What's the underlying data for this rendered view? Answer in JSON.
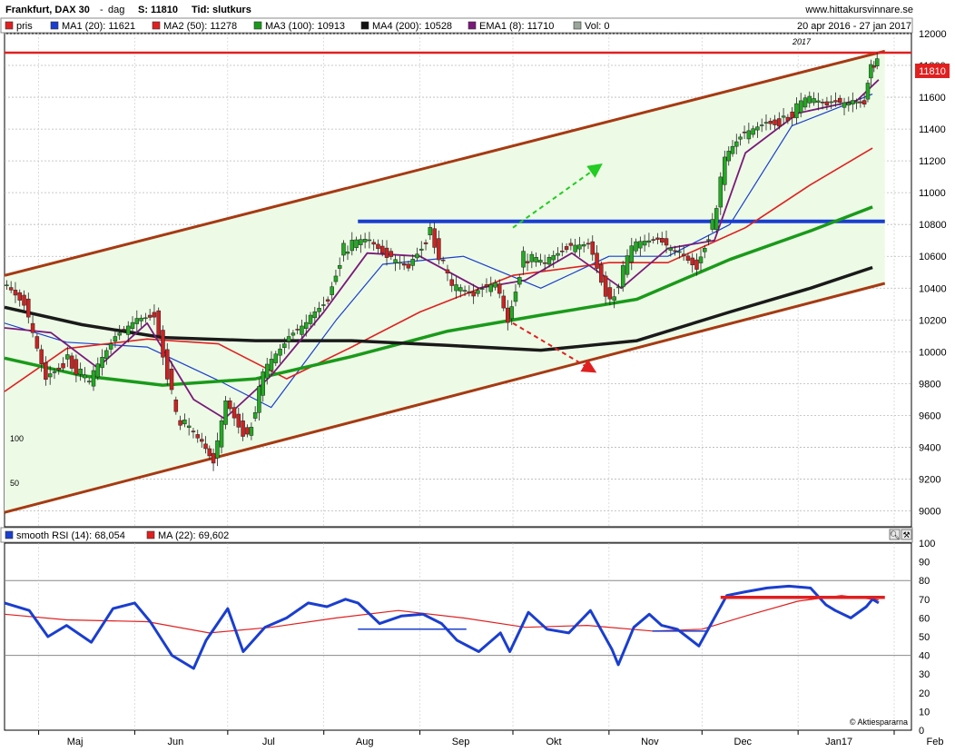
{
  "header": {
    "title": "Frankfurt, DAX 30",
    "dash": "-",
    "period": "dag",
    "close_label": "S: 11810",
    "type_label": "Tid: slutkurs",
    "site": "www.hittakursvinnare.se",
    "date_range": "20 apr 2016 - 27 jan 2017"
  },
  "legend_main": [
    {
      "label": "pris",
      "color": "#e02020"
    },
    {
      "label": "MA1 (20): 11621",
      "color": "#1a3ecf"
    },
    {
      "label": "MA2 (50): 11278",
      "color": "#e02020"
    },
    {
      "label": "MA3 (100): 10913",
      "color": "#1a9a1a"
    },
    {
      "label": "MA4 (200): 10528",
      "color": "#111111"
    },
    {
      "label": "EMA1 (8): 11710",
      "color": "#7a1a7a"
    },
    {
      "label": "Vol: 0",
      "color": "#9aa69a"
    }
  ],
  "legend_rsi": [
    {
      "label": "smooth RSI (14): 68,054",
      "color": "#1a3ecf"
    },
    {
      "label": "MA (22): 69,602",
      "color": "#e02020"
    }
  ],
  "price_badge": "11810",
  "year_marker": "2017",
  "watermark": "© Aktiespararna",
  "volume_ticks": [
    "100",
    "50"
  ],
  "chart_data": {
    "type": "candlestick",
    "price_axis": {
      "min": 8900,
      "max": 12000,
      "ticks": [
        9000,
        9200,
        9400,
        9600,
        9800,
        10000,
        10200,
        10400,
        10600,
        10800,
        11000,
        11200,
        11400,
        11600,
        11800,
        12000
      ]
    },
    "rsi_axis": {
      "min": 0,
      "max": 100,
      "ticks": [
        0,
        10,
        20,
        30,
        40,
        50,
        60,
        70,
        80,
        90,
        100
      ],
      "guides": [
        40,
        80
      ]
    },
    "months": [
      "Maj",
      "Jun",
      "Jul",
      "Aug",
      "Sep",
      "Okt",
      "Nov",
      "Dec",
      "Jan17",
      "Feb"
    ],
    "month_dates": [
      "2016-05-01",
      "2016-06-01",
      "2016-07-01",
      "2016-08-01",
      "2016-09-01",
      "2016-10-01",
      "2016-11-01",
      "2016-12-01",
      "2017-01-01",
      "2017-02-01"
    ],
    "price_closes": [
      [
        "2016-04-20",
        10420
      ],
      [
        "2016-04-27",
        10300
      ],
      [
        "2016-05-04",
        9850
      ],
      [
        "2016-05-11",
        9950
      ],
      [
        "2016-05-18",
        9800
      ],
      [
        "2016-05-25",
        10050
      ],
      [
        "2016-06-01",
        10200
      ],
      [
        "2016-06-08",
        10250
      ],
      [
        "2016-06-15",
        9600
      ],
      [
        "2016-06-22",
        9450
      ],
      [
        "2016-06-27",
        9300
      ],
      [
        "2016-07-01",
        9700
      ],
      [
        "2016-07-08",
        9450
      ],
      [
        "2016-07-13",
        9850
      ],
      [
        "2016-07-20",
        10050
      ],
      [
        "2016-07-27",
        10200
      ],
      [
        "2016-08-03",
        10350
      ],
      [
        "2016-08-08",
        10650
      ],
      [
        "2016-08-15",
        10700
      ],
      [
        "2016-08-22",
        10600
      ],
      [
        "2016-08-29",
        10550
      ],
      [
        "2016-09-05",
        10750
      ],
      [
        "2016-09-12",
        10400
      ],
      [
        "2016-09-19",
        10350
      ],
      [
        "2016-09-26",
        10450
      ],
      [
        "2016-09-30",
        10200
      ],
      [
        "2016-10-05",
        10600
      ],
      [
        "2016-10-12",
        10550
      ],
      [
        "2016-10-19",
        10650
      ],
      [
        "2016-10-26",
        10700
      ],
      [
        "2016-11-02",
        10300
      ],
      [
        "2016-11-09",
        10650
      ],
      [
        "2016-11-16",
        10700
      ],
      [
        "2016-11-23",
        10650
      ],
      [
        "2016-11-30",
        10550
      ],
      [
        "2016-12-05",
        10800
      ],
      [
        "2016-12-09",
        11200
      ],
      [
        "2016-12-14",
        11350
      ],
      [
        "2016-12-21",
        11450
      ],
      [
        "2016-12-28",
        11450
      ],
      [
        "2017-01-04",
        11580
      ],
      [
        "2017-01-11",
        11550
      ],
      [
        "2017-01-18",
        11580
      ],
      [
        "2017-01-23",
        11580
      ],
      [
        "2017-01-25",
        11830
      ],
      [
        "2017-01-27",
        11810
      ]
    ],
    "levels": {
      "resistance_top": 11880,
      "breakout_line": 10820
    },
    "channel": {
      "upper": [
        [
          "2016-04-20",
          10480
        ],
        [
          "2017-01-29",
          11890
        ]
      ],
      "lower": [
        [
          "2016-04-20",
          8990
        ],
        [
          "2017-01-29",
          10430
        ]
      ]
    },
    "ma": [
      {
        "name": "MA1 (20)",
        "points": [
          [
            "2016-04-20",
            10180
          ],
          [
            "2016-05-10",
            10060
          ],
          [
            "2016-06-05",
            10030
          ],
          [
            "2016-06-28",
            9820
          ],
          [
            "2016-07-15",
            9650
          ],
          [
            "2016-08-05",
            10200
          ],
          [
            "2016-08-20",
            10550
          ],
          [
            "2016-09-15",
            10600
          ],
          [
            "2016-10-10",
            10400
          ],
          [
            "2016-11-01",
            10600
          ],
          [
            "2016-11-20",
            10600
          ],
          [
            "2016-12-10",
            10800
          ],
          [
            "2016-12-30",
            11420
          ],
          [
            "2017-01-25",
            11620
          ]
        ]
      },
      {
        "name": "MA2 (50)",
        "points": [
          [
            "2016-04-20",
            9750
          ],
          [
            "2016-05-10",
            10020
          ],
          [
            "2016-06-05",
            10080
          ],
          [
            "2016-06-28",
            10050
          ],
          [
            "2016-07-20",
            9830
          ],
          [
            "2016-08-10",
            10030
          ],
          [
            "2016-09-01",
            10250
          ],
          [
            "2016-10-01",
            10480
          ],
          [
            "2016-11-01",
            10560
          ],
          [
            "2016-11-20",
            10560
          ],
          [
            "2016-12-15",
            10780
          ],
          [
            "2017-01-05",
            11050
          ],
          [
            "2017-01-25",
            11280
          ]
        ]
      },
      {
        "name": "MA3 (100)",
        "points": [
          [
            "2016-04-20",
            9960
          ],
          [
            "2016-05-15",
            9850
          ],
          [
            "2016-06-10",
            9790
          ],
          [
            "2016-07-10",
            9830
          ],
          [
            "2016-08-10",
            9970
          ],
          [
            "2016-09-10",
            10130
          ],
          [
            "2016-10-10",
            10230
          ],
          [
            "2016-11-10",
            10330
          ],
          [
            "2016-12-10",
            10580
          ],
          [
            "2017-01-05",
            10760
          ],
          [
            "2017-01-25",
            10910
          ]
        ]
      },
      {
        "name": "MA4 (200)",
        "points": [
          [
            "2016-04-20",
            10280
          ],
          [
            "2016-05-15",
            10170
          ],
          [
            "2016-06-10",
            10090
          ],
          [
            "2016-07-10",
            10070
          ],
          [
            "2016-08-10",
            10070
          ],
          [
            "2016-09-10",
            10040
          ],
          [
            "2016-10-10",
            10010
          ],
          [
            "2016-11-10",
            10070
          ],
          [
            "2016-12-10",
            10250
          ],
          [
            "2017-01-05",
            10400
          ],
          [
            "2017-01-25",
            10530
          ]
        ]
      },
      {
        "name": "EMA1 (8)",
        "points": [
          [
            "2016-04-20",
            10150
          ],
          [
            "2016-05-05",
            10120
          ],
          [
            "2016-05-20",
            9900
          ],
          [
            "2016-06-05",
            10180
          ],
          [
            "2016-06-20",
            9700
          ],
          [
            "2016-06-30",
            9580
          ],
          [
            "2016-07-15",
            9850
          ],
          [
            "2016-08-01",
            10250
          ],
          [
            "2016-08-15",
            10620
          ],
          [
            "2016-09-01",
            10600
          ],
          [
            "2016-09-20",
            10400
          ],
          [
            "2016-10-05",
            10450
          ],
          [
            "2016-10-20",
            10620
          ],
          [
            "2016-11-05",
            10400
          ],
          [
            "2016-11-20",
            10650
          ],
          [
            "2016-12-05",
            10700
          ],
          [
            "2016-12-15",
            11250
          ],
          [
            "2017-01-01",
            11500
          ],
          [
            "2017-01-20",
            11580
          ],
          [
            "2017-01-27",
            11710
          ]
        ]
      }
    ],
    "arrows": [
      {
        "color": "#22cc22",
        "from": [
          "2016-10-01",
          10780
        ],
        "to": [
          "2016-10-29",
          11170
        ]
      },
      {
        "color": "#e02020",
        "from": [
          "2016-10-01",
          10180
        ],
        "to": [
          "2016-10-27",
          9880
        ]
      }
    ],
    "rsi": [
      [
        "2016-04-20",
        68
      ],
      [
        "2016-04-28",
        64
      ],
      [
        "2016-05-04",
        50
      ],
      [
        "2016-05-10",
        56
      ],
      [
        "2016-05-18",
        47
      ],
      [
        "2016-05-25",
        65
      ],
      [
        "2016-06-01",
        68
      ],
      [
        "2016-06-06",
        58
      ],
      [
        "2016-06-13",
        40
      ],
      [
        "2016-06-20",
        33
      ],
      [
        "2016-06-24",
        48
      ],
      [
        "2016-07-01",
        65
      ],
      [
        "2016-07-06",
        42
      ],
      [
        "2016-07-13",
        55
      ],
      [
        "2016-07-20",
        60
      ],
      [
        "2016-07-27",
        68
      ],
      [
        "2016-08-02",
        66
      ],
      [
        "2016-08-08",
        70
      ],
      [
        "2016-08-12",
        68
      ],
      [
        "2016-08-19",
        57
      ],
      [
        "2016-08-26",
        61
      ],
      [
        "2016-09-02",
        62
      ],
      [
        "2016-09-08",
        57
      ],
      [
        "2016-09-13",
        48
      ],
      [
        "2016-09-20",
        42
      ],
      [
        "2016-09-27",
        52
      ],
      [
        "2016-09-30",
        42
      ],
      [
        "2016-10-06",
        63
      ],
      [
        "2016-10-12",
        54
      ],
      [
        "2016-10-19",
        52
      ],
      [
        "2016-10-26",
        64
      ],
      [
        "2016-11-02",
        43
      ],
      [
        "2016-11-04",
        35
      ],
      [
        "2016-11-09",
        55
      ],
      [
        "2016-11-14",
        62
      ],
      [
        "2016-11-18",
        56
      ],
      [
        "2016-11-23",
        54
      ],
      [
        "2016-11-30",
        45
      ],
      [
        "2016-12-05",
        60
      ],
      [
        "2016-12-09",
        72
      ],
      [
        "2016-12-15",
        74
      ],
      [
        "2016-12-22",
        76
      ],
      [
        "2016-12-29",
        77
      ],
      [
        "2017-01-05",
        76
      ],
      [
        "2017-01-10",
        67
      ],
      [
        "2017-01-13",
        64
      ],
      [
        "2017-01-18",
        60
      ],
      [
        "2017-01-23",
        66
      ],
      [
        "2017-01-25",
        70
      ],
      [
        "2017-01-27",
        68
      ]
    ],
    "rsi_ma": [
      [
        "2016-04-20",
        62
      ],
      [
        "2016-05-10",
        59
      ],
      [
        "2016-06-05",
        58
      ],
      [
        "2016-06-25",
        52
      ],
      [
        "2016-07-15",
        55
      ],
      [
        "2016-08-05",
        60
      ],
      [
        "2016-08-25",
        64
      ],
      [
        "2016-09-15",
        60
      ],
      [
        "2016-10-05",
        55
      ],
      [
        "2016-10-25",
        56
      ],
      [
        "2016-11-15",
        53
      ],
      [
        "2016-12-01",
        54
      ],
      [
        "2016-12-15",
        61
      ],
      [
        "2017-01-01",
        69
      ],
      [
        "2017-01-15",
        72
      ],
      [
        "2017-01-27",
        69.6
      ]
    ],
    "rsi_level_line": {
      "value": 71,
      "from": "2016-12-07",
      "to": "2017-01-29"
    },
    "rsi_trend_marks": [
      {
        "from": "2016-08-12",
        "to": "2016-09-16",
        "value": 54
      },
      {
        "from": "2016-11-15",
        "to": "2016-12-03",
        "value": 53
      }
    ]
  }
}
